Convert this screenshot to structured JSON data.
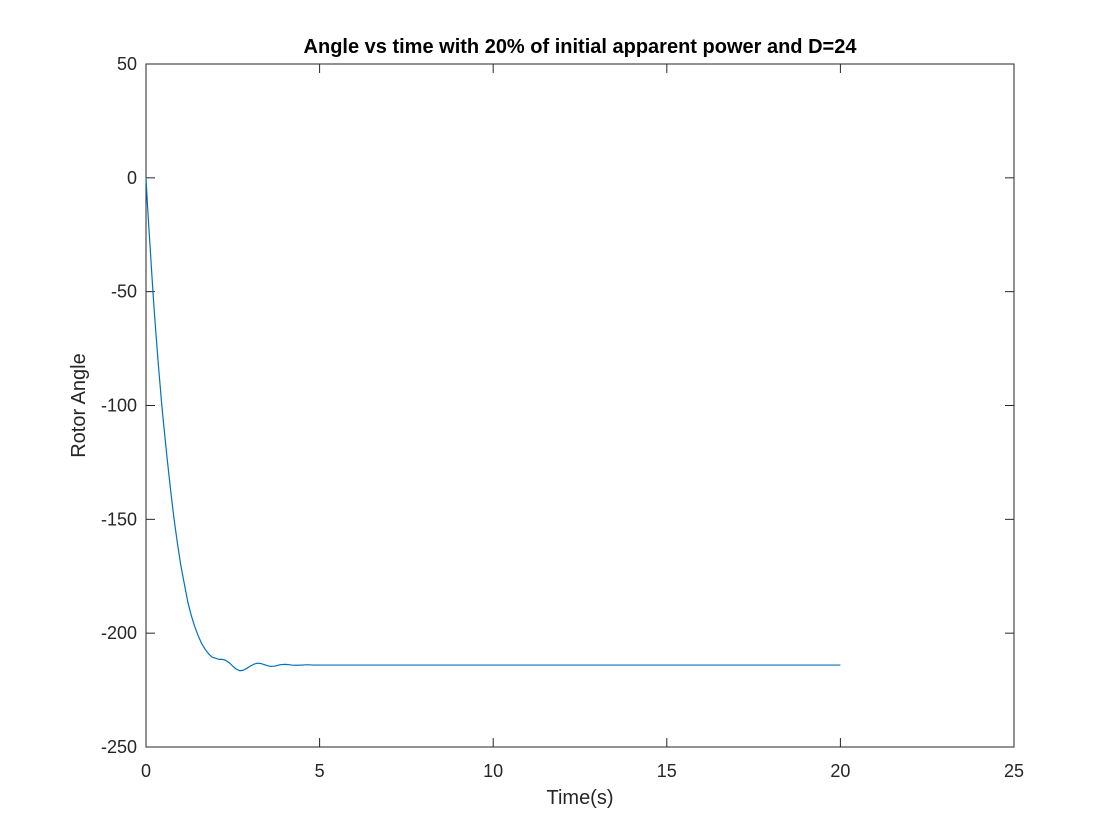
{
  "chart_data": {
    "type": "line",
    "title": "Angle vs time with 20% of initial apparent power and D=24",
    "xlabel": "Time(s)",
    "ylabel": "Rotor Angle",
    "xlim": [
      0,
      25
    ],
    "ylim": [
      -250,
      50
    ],
    "xticks": [
      0,
      5,
      10,
      15,
      20,
      25
    ],
    "xtick_labels": [
      "0",
      "5",
      "10",
      "15",
      "20",
      "25"
    ],
    "yticks": [
      50,
      0,
      -50,
      -100,
      -150,
      -200,
      -250
    ],
    "ytick_labels": [
      "50",
      "0",
      "-50",
      "-100",
      "-150",
      "-200",
      "-250"
    ],
    "grid": false,
    "box": true,
    "series": [
      {
        "color": "#0072BD",
        "x": [
          0,
          0.05,
          0.1,
          0.15,
          0.2,
          0.25,
          0.3,
          0.35,
          0.4,
          0.45,
          0.5,
          0.6,
          0.7,
          0.8,
          0.9,
          1.0,
          1.1,
          1.2,
          1.3,
          1.4,
          1.5,
          1.6,
          1.7,
          1.8,
          1.9,
          2.0,
          2.1,
          2.2,
          2.3,
          2.4,
          2.5,
          2.6,
          2.7,
          2.8,
          2.9,
          3.0,
          3.1,
          3.2,
          3.3,
          3.4,
          3.5,
          3.6,
          3.7,
          3.8,
          3.9,
          4.0,
          4.1,
          4.2,
          4.3,
          4.4,
          4.5,
          4.6,
          4.7,
          4.8,
          5.0,
          5.5,
          6.0,
          7.0,
          8.0,
          10.0,
          12.0,
          15.0,
          18.0,
          20.0
        ],
        "y": [
          0,
          -14,
          -26,
          -38,
          -50,
          -61,
          -71,
          -81,
          -90,
          -99,
          -107,
          -122,
          -136,
          -149,
          -160,
          -170,
          -178,
          -186,
          -192,
          -197,
          -201,
          -204.5,
          -207,
          -209,
          -210.5,
          -211,
          -211.5,
          -211.5,
          -212,
          -213,
          -214.5,
          -215.8,
          -216.5,
          -216.3,
          -215.5,
          -214.5,
          -213.7,
          -213.2,
          -213.3,
          -213.8,
          -214.3,
          -214.6,
          -214.5,
          -214.1,
          -213.8,
          -213.7,
          -213.8,
          -214.0,
          -214.1,
          -214.1,
          -214.0,
          -213.9,
          -213.9,
          -214.0,
          -214.0,
          -214.0,
          -214.0,
          -214.0,
          -214.0,
          -214.0,
          -214.0,
          -214.0,
          -214.0,
          -214.0
        ]
      }
    ]
  }
}
